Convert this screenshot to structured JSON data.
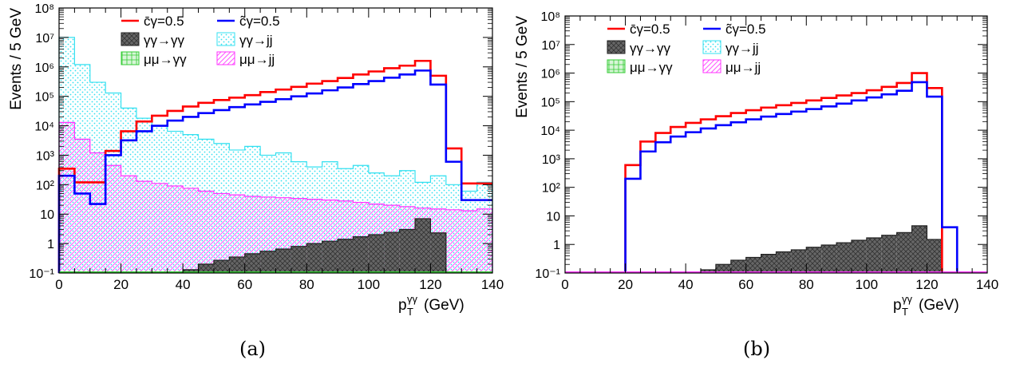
{
  "chart_data": [
    {
      "type": "bar",
      "panel": "(a)",
      "ylabel": "Events / 5 GeV",
      "xlabel": "p_T^γγ (GeV)",
      "xlabel_parts": {
        "p": "p",
        "sup": "γγ",
        "sub": "T",
        "unit": "(GeV)"
      },
      "log_y": true,
      "xlim": [
        0,
        140
      ],
      "ylim": [
        0.1,
        100000000
      ],
      "x_ticks": [
        "0",
        "20",
        "40",
        "60",
        "80",
        "100",
        "120",
        "140"
      ],
      "x_tick_values": [
        0,
        20,
        40,
        60,
        80,
        100,
        120,
        140
      ],
      "y_ticks": [
        "10⁻¹",
        "1",
        "10",
        "10²",
        "10³",
        "10⁴",
        "10⁵",
        "10⁶",
        "10⁷",
        "10⁸"
      ],
      "y_tick_values": [
        0.1,
        1,
        10,
        100,
        1000,
        10000,
        100000,
        1000000,
        10000000,
        100000000
      ],
      "bin_width": 5,
      "legend": [
        "c̄γ=0.5",
        "c̃γ=0.5",
        "γγ→γγ",
        "γγ→jj",
        "μμ→γγ",
        "μμ→jj"
      ],
      "legend_placement": "top",
      "series": [
        {
          "name": "c̄γ=0.5",
          "style": "line",
          "color": "#ff0000",
          "values": [
            350,
            120,
            120,
            1400,
            6500,
            14000,
            22000,
            32000,
            45000,
            60000,
            75000,
            90000,
            110000,
            140000,
            170000,
            210000,
            270000,
            330000,
            420000,
            550000,
            700000,
            900000,
            1100000,
            1600000,
            500000,
            1700,
            110,
            110
          ]
        },
        {
          "name": "c̃γ=0.5",
          "style": "line",
          "color": "#0000ff",
          "values": [
            200,
            50,
            22,
            1000,
            3200,
            6500,
            10000,
            15000,
            20000,
            27000,
            34000,
            43000,
            53000,
            65000,
            80000,
            100000,
            125000,
            160000,
            200000,
            260000,
            330000,
            430000,
            550000,
            750000,
            250000,
            600,
            30,
            30
          ]
        },
        {
          "name": "γγ→γγ",
          "style": "filled",
          "color": "#333333",
          "values": [
            null,
            null,
            null,
            null,
            null,
            null,
            null,
            null,
            0.13,
            0.2,
            0.27,
            0.35,
            0.45,
            0.55,
            0.65,
            0.8,
            1.0,
            1.2,
            1.4,
            1.7,
            2.0,
            2.4,
            3.0,
            7.0,
            2.3,
            null,
            null,
            null
          ]
        },
        {
          "name": "γγ→jj",
          "style": "hatched",
          "color": "#33e0f0",
          "values": [
            10000000,
            1200000,
            300000,
            130000,
            40000,
            18000,
            10000,
            6500,
            5000,
            3500,
            2500,
            1500,
            2000,
            1000,
            1200,
            600,
            400,
            600,
            350,
            450,
            250,
            200,
            300,
            120,
            200,
            100,
            60,
            120
          ]
        },
        {
          "name": "μμ→γγ",
          "style": "hatched",
          "color": "#33cc33",
          "values": []
        },
        {
          "name": "μμ→jj",
          "style": "hatched",
          "color": "#ff33ff",
          "values": [
            13000,
            3500,
            1200,
            450,
            200,
            130,
            110,
            90,
            75,
            60,
            50,
            45,
            40,
            38,
            36,
            34,
            32,
            30,
            28,
            25,
            22,
            20,
            18,
            16,
            15,
            14,
            13,
            15
          ]
        }
      ]
    },
    {
      "type": "bar",
      "panel": "(b)",
      "ylabel": "Events / 5 GeV",
      "xlabel": "p_T^γγ (GeV)",
      "xlabel_parts": {
        "p": "p",
        "sup": "γγ",
        "sub": "T",
        "unit": "(GeV)"
      },
      "log_y": true,
      "xlim": [
        0,
        140
      ],
      "ylim": [
        0.1,
        100000000
      ],
      "x_ticks": [
        "0",
        "20",
        "40",
        "60",
        "80",
        "100",
        "120",
        "140"
      ],
      "x_tick_values": [
        0,
        20,
        40,
        60,
        80,
        100,
        120,
        140
      ],
      "y_ticks": [
        "10⁻¹",
        "1",
        "10",
        "10²",
        "10³",
        "10⁴",
        "10⁵",
        "10⁶",
        "10⁷",
        "10⁸"
      ],
      "y_tick_values": [
        0.1,
        1,
        10,
        100,
        1000,
        10000,
        100000,
        1000000,
        10000000,
        100000000
      ],
      "bin_width": 5,
      "legend": [
        "c̄γ=0.5",
        "c̃γ=0.5",
        "γγ→γγ",
        "γγ→jj",
        "μμ→γγ",
        "μμ→jj"
      ],
      "legend_placement": "top",
      "series": [
        {
          "name": "c̄γ=0.5",
          "style": "line",
          "color": "#ff0000",
          "values": [
            null,
            null,
            null,
            null,
            600,
            4000,
            8000,
            13000,
            18000,
            24000,
            31000,
            40000,
            50000,
            62000,
            75000,
            90000,
            110000,
            135000,
            165000,
            200000,
            250000,
            330000,
            450000,
            1000000,
            300000,
            null,
            null,
            null
          ]
        },
        {
          "name": "c̃γ=0.5",
          "style": "line",
          "color": "#0000ff",
          "values": [
            null,
            null,
            null,
            null,
            200,
            1800,
            3800,
            6000,
            8500,
            11500,
            15000,
            19000,
            24000,
            30000,
            37000,
            45000,
            55000,
            68000,
            85000,
            110000,
            140000,
            180000,
            240000,
            480000,
            150000,
            4,
            null,
            null
          ]
        },
        {
          "name": "γγ→γγ",
          "style": "filled",
          "color": "#333333",
          "values": [
            null,
            null,
            null,
            null,
            null,
            null,
            null,
            null,
            null,
            0.13,
            0.2,
            0.28,
            0.35,
            0.45,
            0.55,
            0.65,
            0.8,
            0.95,
            1.15,
            1.4,
            1.7,
            2.1,
            2.6,
            4.5,
            1.5,
            null,
            null,
            null
          ]
        },
        {
          "name": "γγ→jj",
          "style": "hatched",
          "color": "#33e0f0",
          "values": []
        },
        {
          "name": "μμ→γγ",
          "style": "hatched",
          "color": "#33cc33",
          "values": []
        },
        {
          "name": "μμ→jj",
          "style": "hatched",
          "color": "#ff33ff",
          "values": []
        }
      ]
    }
  ],
  "captions": {
    "a": "(a)",
    "b": "(b)"
  }
}
